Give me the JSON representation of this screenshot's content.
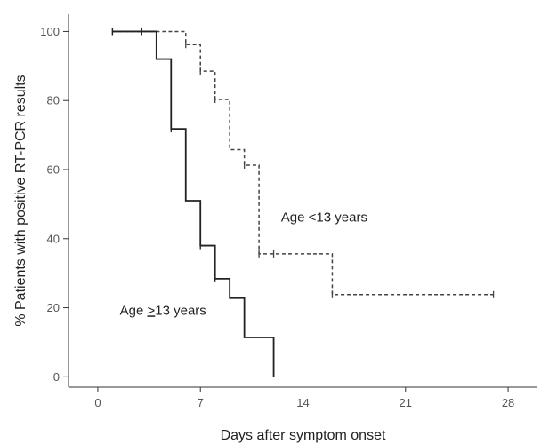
{
  "chart_data": {
    "type": "line",
    "xlabel": "Days after symptom onset",
    "ylabel": "% Patients with positive RT-PCR results",
    "xlim": [
      -2,
      30
    ],
    "ylim": [
      -3,
      105
    ],
    "xticks": [
      0,
      7,
      14,
      21,
      28
    ],
    "yticks": [
      0,
      20,
      40,
      60,
      80,
      100
    ],
    "grid": false,
    "legend": "none",
    "series": [
      {
        "name": "Age <13 years",
        "style": "dashed",
        "color": "#444444",
        "x": [
          1,
          6,
          7,
          8,
          9,
          10,
          11,
          16,
          27
        ],
        "y": [
          100,
          96.2,
          88.5,
          80.3,
          65.8,
          61.3,
          35.6,
          23.8,
          23.8
        ],
        "censor_x": [
          1,
          3,
          6,
          7,
          8,
          10,
          11,
          12,
          16,
          27
        ],
        "censor_y": [
          100,
          100,
          96.2,
          88.5,
          80.3,
          61.3,
          35.6,
          35.6,
          23.8,
          23.8
        ]
      },
      {
        "name": "Age >13 years",
        "style": "solid",
        "color": "#222222",
        "x": [
          1,
          4,
          5,
          6,
          7,
          8,
          9,
          10,
          12
        ],
        "y": [
          100,
          92,
          71.8,
          51,
          38,
          28.4,
          22.8,
          11.4,
          0
        ],
        "censor_x": [
          1,
          3,
          5,
          7,
          8
        ],
        "censor_y": [
          100,
          100,
          71.8,
          38,
          28.4
        ]
      }
    ],
    "annotations": [
      {
        "text": "Age <13 years",
        "x": 12.5,
        "y": 45,
        "series": 0
      },
      {
        "prefix": "Age ",
        "emph": ">",
        "suffix": "13 years",
        "x": 1.5,
        "y": 18,
        "series": 1
      }
    ]
  }
}
